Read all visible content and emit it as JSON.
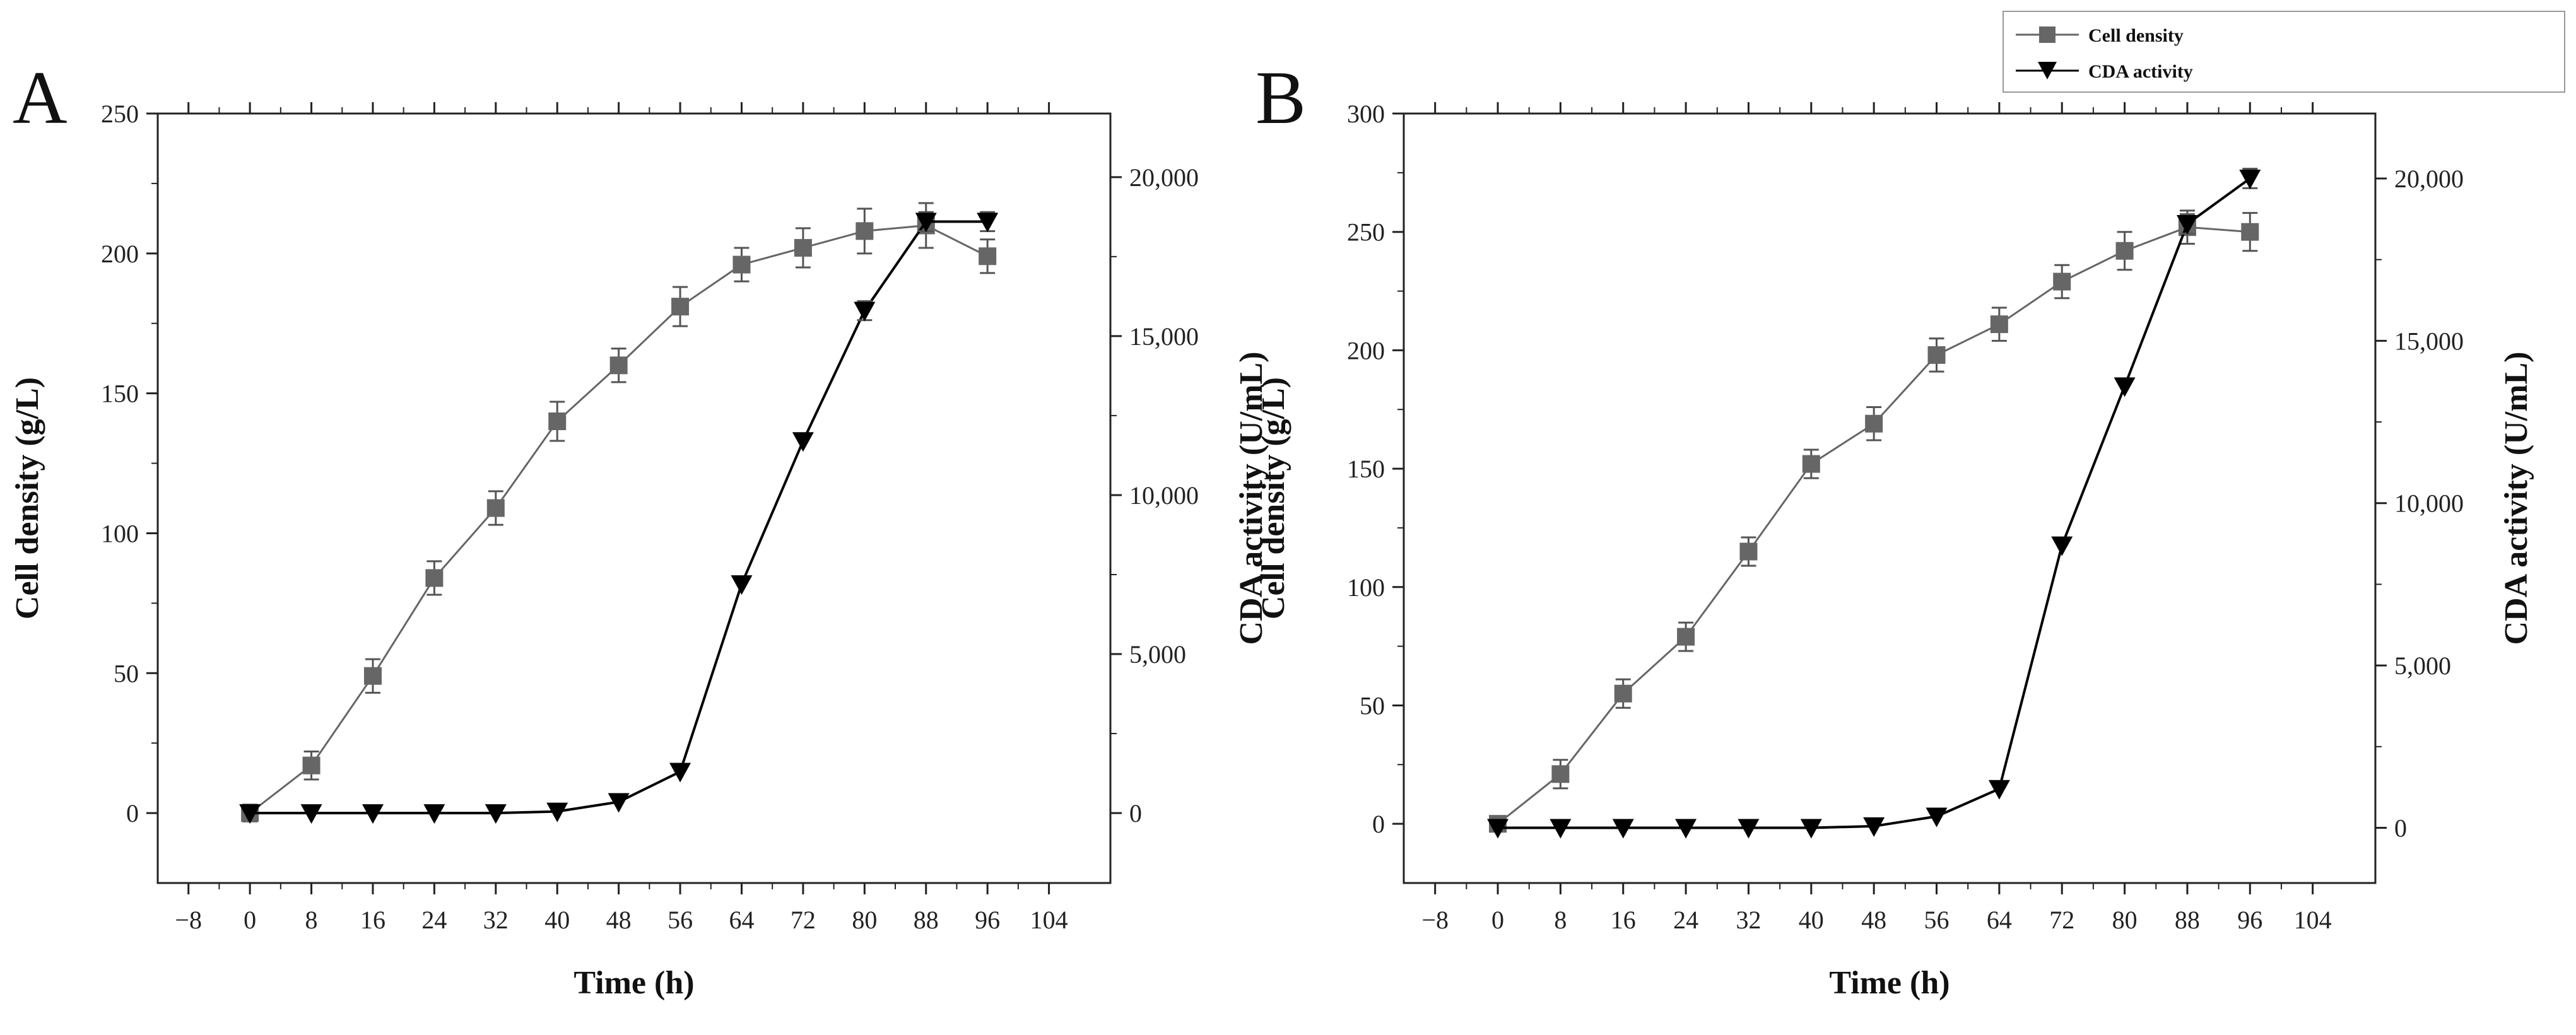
{
  "colors": {
    "cell_density": "#666666",
    "cda_activity": "#000000",
    "axis": "#222222",
    "background": "#ffffff"
  },
  "legend": {
    "entries": [
      {
        "label": "Cell density",
        "marker": "square",
        "color": "#666666"
      },
      {
        "label": "CDA activity",
        "marker": "triangle-down",
        "color": "#000000"
      }
    ]
  },
  "chart_data": [
    {
      "panel": "A",
      "type": "line",
      "xlabel": "Time (h)",
      "ylabel": "Cell density (g/L)",
      "y2label": "CDA activity (U/mL)",
      "xlim": [
        -12,
        112
      ],
      "xticks": [
        -8,
        0,
        8,
        16,
        24,
        32,
        40,
        48,
        56,
        64,
        72,
        80,
        88,
        96,
        104
      ],
      "xtick_labels": [
        "−8",
        "0",
        "8",
        "16",
        "24",
        "32",
        "40",
        "48",
        "56",
        "64",
        "72",
        "80",
        "88",
        "96",
        "104"
      ],
      "ylim": [
        -25,
        250
      ],
      "yticks": [
        0,
        50,
        100,
        150,
        200,
        250
      ],
      "ytick_labels": [
        "0",
        "50",
        "100",
        "150",
        "200",
        "250"
      ],
      "y2lim": [
        -2200,
        22000
      ],
      "y2ticks": [
        0,
        5000,
        10000,
        15000,
        20000
      ],
      "y2tick_labels": [
        "0",
        "5,000",
        "10,000",
        "15,000",
        "20,000"
      ],
      "x": [
        0,
        8,
        16,
        24,
        32,
        40,
        48,
        56,
        64,
        72,
        80,
        88,
        96
      ],
      "series": [
        {
          "name": "Cell density",
          "axis": "left",
          "marker": "square",
          "values": [
            0,
            17,
            49,
            84,
            109,
            140,
            160,
            181,
            196,
            202,
            208,
            210,
            199
          ],
          "errors": [
            3,
            5,
            6,
            6,
            6,
            7,
            6,
            7,
            6,
            7,
            8,
            8,
            6
          ]
        },
        {
          "name": "CDA activity",
          "axis": "right",
          "marker": "triangle-down",
          "values": [
            0,
            0,
            0,
            0,
            0,
            50,
            350,
            1300,
            7200,
            11700,
            15800,
            18600,
            18600
          ],
          "errors": [
            0,
            0,
            0,
            0,
            0,
            0,
            0,
            0,
            0,
            0,
            300,
            300,
            300
          ]
        }
      ]
    },
    {
      "panel": "B",
      "type": "line",
      "xlabel": "Time (h)",
      "ylabel": "Cell density (g/L)",
      "y2label": "CDA activity (U/mL)",
      "xlim": [
        -12,
        112
      ],
      "xticks": [
        -8,
        0,
        8,
        16,
        24,
        32,
        40,
        48,
        56,
        64,
        72,
        80,
        88,
        96,
        104
      ],
      "xtick_labels": [
        "−8",
        "0",
        "8",
        "16",
        "24",
        "32",
        "40",
        "48",
        "56",
        "64",
        "72",
        "80",
        "88",
        "96",
        "104"
      ],
      "ylim": [
        -25,
        300
      ],
      "yticks": [
        0,
        50,
        100,
        150,
        200,
        250,
        300
      ],
      "ytick_labels": [
        "0",
        "50",
        "100",
        "150",
        "200",
        "250",
        "300"
      ],
      "y2lim": [
        -1700,
        22000
      ],
      "y2ticks": [
        0,
        5000,
        10000,
        15000,
        20000
      ],
      "y2tick_labels": [
        "0",
        "5,000",
        "10,000",
        "15,000",
        "20,000"
      ],
      "x": [
        0,
        8,
        16,
        24,
        32,
        40,
        48,
        56,
        64,
        72,
        80,
        88,
        96
      ],
      "series": [
        {
          "name": "Cell density",
          "axis": "left",
          "marker": "square",
          "values": [
            0,
            21,
            55,
            79,
            115,
            152,
            169,
            198,
            211,
            229,
            242,
            252,
            250
          ],
          "errors": [
            3,
            6,
            6,
            6,
            6,
            6,
            7,
            7,
            7,
            7,
            8,
            7,
            8
          ]
        },
        {
          "name": "CDA activity",
          "axis": "right",
          "marker": "triangle-down",
          "values": [
            0,
            0,
            0,
            0,
            0,
            0,
            50,
            350,
            1200,
            8700,
            13600,
            18600,
            20000
          ],
          "errors": [
            0,
            0,
            0,
            0,
            0,
            0,
            0,
            0,
            0,
            0,
            0,
            300,
            300
          ]
        }
      ]
    }
  ]
}
